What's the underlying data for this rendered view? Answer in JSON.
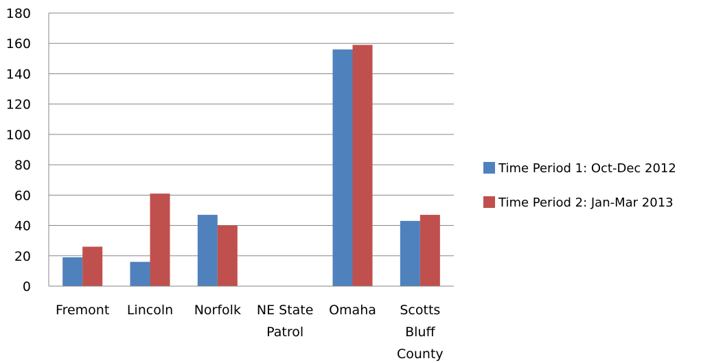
{
  "chart_data": {
    "type": "bar",
    "title": "",
    "xlabel": "",
    "ylabel": "",
    "categories": [
      [
        "Fremont"
      ],
      [
        "Lincoln"
      ],
      [
        "Norfolk"
      ],
      [
        "NE State",
        "Patrol"
      ],
      [
        "Omaha"
      ],
      [
        "Scotts",
        "Bluff",
        "County"
      ]
    ],
    "series": [
      {
        "name": "Time Period 1: Oct-Dec 2012",
        "color": "#4F81BD",
        "values": [
          19,
          16,
          47,
          0,
          156,
          43
        ]
      },
      {
        "name": "Time Period 2: Jan-Mar 2013",
        "color": "#C0504D",
        "values": [
          26,
          61,
          40,
          0,
          159,
          47
        ]
      }
    ],
    "ylim": [
      0,
      180
    ],
    "yticks": [
      0,
      20,
      40,
      60,
      80,
      100,
      120,
      140,
      160,
      180
    ],
    "grid": true,
    "legend_position": "right"
  }
}
